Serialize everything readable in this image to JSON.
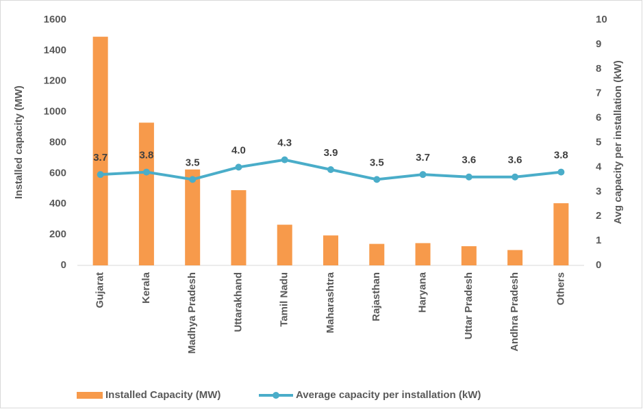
{
  "chart_data": {
    "type": "combo",
    "categories": [
      "Gujarat",
      "Kerala",
      "Madhya Pradesh",
      "Uttarakhand",
      "Tamil Nadu",
      "Maharashtra",
      "Rajasthan",
      "Haryana",
      "Uttar Pradesh",
      "Andhra Pradesh",
      "Others"
    ],
    "y_label": "Installed capacity (MW)",
    "y2_label": "Avg capacity per installation (kW)",
    "ylim": [
      0,
      1600
    ],
    "yticks": [
      0,
      200,
      400,
      600,
      800,
      1000,
      1200,
      1400,
      1600
    ],
    "y2lim": [
      0,
      10
    ],
    "y2ticks": [
      0,
      1,
      2,
      3,
      4,
      5,
      6,
      7,
      8,
      9,
      10
    ],
    "series": [
      {
        "name": "Installed Capacity (MW)",
        "type": "bar",
        "color": "#f79a4b",
        "values": [
          1490,
          930,
          625,
          490,
          265,
          195,
          140,
          145,
          125,
          100,
          405
        ]
      },
      {
        "name": "Average capacity per installation (kW)",
        "type": "line",
        "axis": "y2",
        "color": "#4aadc9",
        "values": [
          3.7,
          3.8,
          3.5,
          4.0,
          4.3,
          3.9,
          3.5,
          3.7,
          3.6,
          3.6,
          3.8
        ],
        "value_labels": [
          "3.7",
          "3.8",
          "3.5",
          "4.0",
          "4.3",
          "3.9",
          "3.5",
          "3.7",
          "3.6",
          "3.6",
          "3.8"
        ]
      }
    ]
  }
}
